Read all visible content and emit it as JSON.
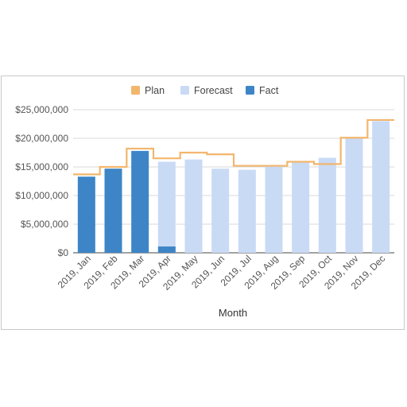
{
  "chart_data": {
    "type": "bar",
    "categories": [
      "2019, Jan",
      "2019, Feb",
      "2019, Mar",
      "2019, Apr",
      "2019, May",
      "2019, Jun",
      "2019, Jul",
      "2019, Aug",
      "2019, Sep",
      "2019, Oct",
      "2019, Nov",
      "2019, Dec"
    ],
    "series": [
      {
        "name": "Plan",
        "kind": "step-line",
        "color": "#f2b66d",
        "values": [
          13700000,
          15000000,
          18200000,
          16500000,
          17500000,
          17200000,
          15200000,
          15200000,
          15900000,
          15500000,
          20100000,
          23200000
        ]
      },
      {
        "name": "Forecast",
        "kind": "bar",
        "color": "#c9daf5",
        "values": [
          null,
          null,
          null,
          15900000,
          16300000,
          14700000,
          14500000,
          15300000,
          15800000,
          16600000,
          20000000,
          23000000
        ]
      },
      {
        "name": "Fact",
        "kind": "bar",
        "color": "#3d85c6",
        "values": [
          13300000,
          14700000,
          17800000,
          1100000,
          null,
          null,
          null,
          null,
          null,
          null,
          null,
          null
        ]
      }
    ],
    "yticks": [
      "$0",
      "$5,000,000",
      "$10,000,000",
      "$15,000,000",
      "$20,000,000",
      "$25,000,000"
    ],
    "ylim": [
      0,
      25000000
    ],
    "xlabel": "Month",
    "ylabel": "",
    "title": "",
    "legend": "top",
    "grid": true
  }
}
